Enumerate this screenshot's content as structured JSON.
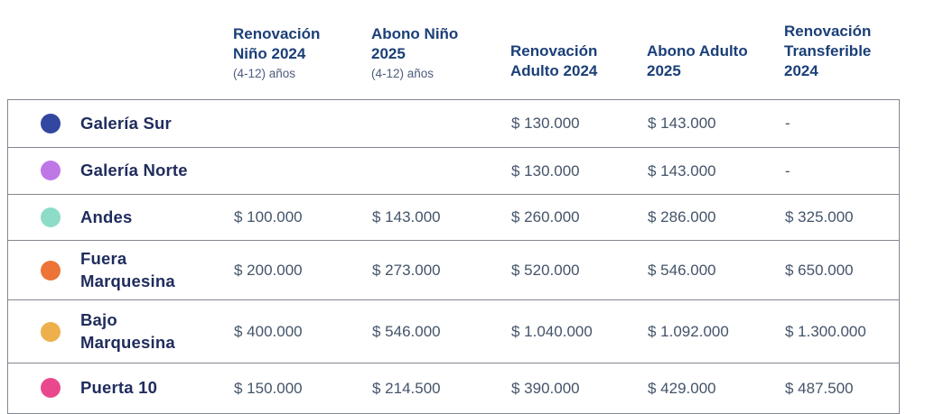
{
  "table": {
    "columns": [
      {
        "title": "",
        "subtitle": ""
      },
      {
        "title": "Renovación Niño 2024",
        "subtitle": "(4-12) años"
      },
      {
        "title": "Abono Niño 2025",
        "subtitle": "(4-12) años"
      },
      {
        "title": "Renovación Adulto 2024",
        "subtitle": ""
      },
      {
        "title": "Abono Adulto 2025",
        "subtitle": ""
      },
      {
        "title": "Renovación Transferible 2024",
        "subtitle": ""
      }
    ],
    "rows": [
      {
        "label": "Galería Sur",
        "dot_color": "#3346a0",
        "values": [
          "",
          "",
          "$ 130.000",
          "$ 143.000",
          "-"
        ]
      },
      {
        "label": "Galería Norte",
        "dot_color": "#c077e6",
        "values": [
          "",
          "",
          "$ 130.000",
          "$ 143.000",
          "-"
        ]
      },
      {
        "label": "Andes",
        "dot_color": "#8cdcc8",
        "values": [
          "$ 100.000",
          "$ 143.000",
          "$ 260.000",
          "$ 286.000",
          "$ 325.000"
        ]
      },
      {
        "label": "Fuera Marquesina",
        "dot_color": "#ec7436",
        "values": [
          "$ 200.000",
          "$ 273.000",
          "$ 520.000",
          "$ 546.000",
          "$ 650.000"
        ]
      },
      {
        "label": "Bajo Marquesina",
        "dot_color": "#edb04d",
        "values": [
          "$ 400.000",
          "$ 546.000",
          "$ 1.040.000",
          "$ 1.092.000",
          "$ 1.300.000"
        ]
      },
      {
        "label": "Puerta 10",
        "dot_color": "#e9498c",
        "values": [
          "$ 150.000",
          "$ 214.500",
          "$ 390.000",
          "$ 429.000",
          "$ 487.500"
        ]
      }
    ]
  },
  "colors": {
    "header_text": "#1b3f78",
    "subtitle_text": "#4d5c7e",
    "row_label_text": "#1f2c5c",
    "value_text": "#44546a",
    "border": "#83878f"
  }
}
